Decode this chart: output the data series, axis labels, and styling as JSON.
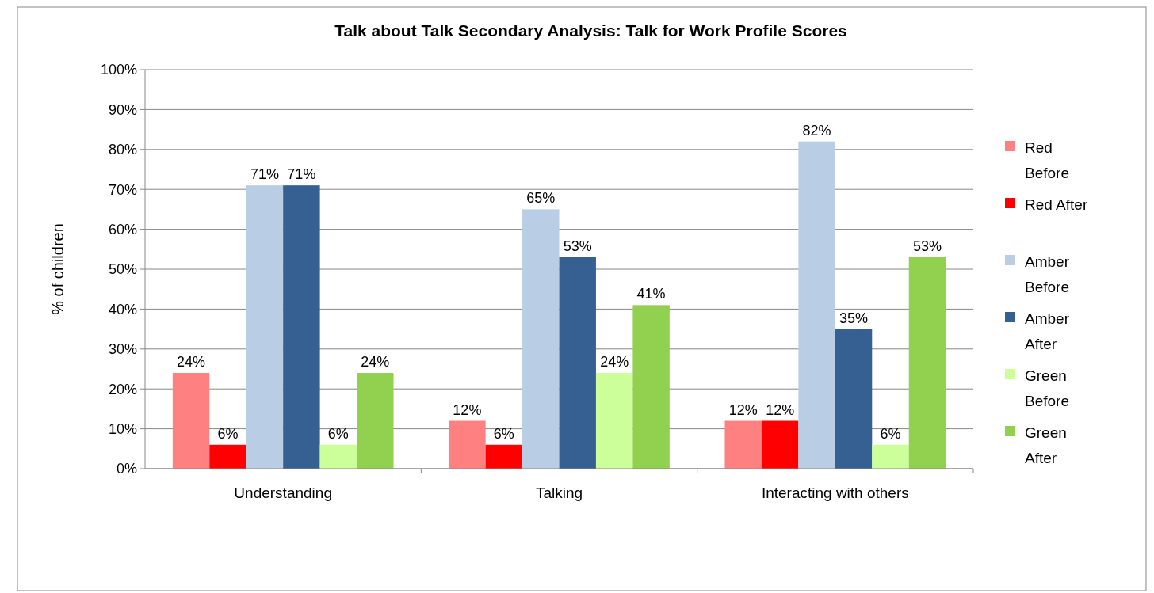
{
  "chart_data": {
    "type": "bar",
    "title": "Talk about Talk Secondary Analysis: Talk for Work Profile Scores",
    "ylabel": "% of children",
    "categories": [
      "Understanding",
      "Talking",
      "Interacting with others"
    ],
    "series": [
      {
        "name": "Red Before",
        "color": "#ff8080",
        "values": [
          24,
          12,
          12
        ],
        "value_labels": [
          "24%",
          "12%",
          "12%"
        ]
      },
      {
        "name": "Red After",
        "color": "#ff0000",
        "values": [
          6,
          6,
          12
        ],
        "value_labels": [
          "6%",
          "6%",
          "12%"
        ]
      },
      {
        "name": "Amber Before",
        "color": "#b9cde5",
        "values": [
          71,
          65,
          82
        ],
        "value_labels": [
          "71%",
          "65%",
          "82%"
        ]
      },
      {
        "name": "Amber After",
        "color": "#366092",
        "values": [
          71,
          53,
          35
        ],
        "value_labels": [
          "71%",
          "53%",
          "35%"
        ]
      },
      {
        "name": "Green Before",
        "color": "#ccff99",
        "values": [
          6,
          24,
          6
        ],
        "value_labels": [
          "6%",
          "24%",
          "6%"
        ]
      },
      {
        "name": "Green After",
        "color": "#92d050",
        "values": [
          24,
          41,
          53
        ],
        "value_labels": [
          "24%",
          "41%",
          "53%"
        ]
      }
    ],
    "ylim": [
      0,
      100
    ],
    "yticks": [
      {
        "value": 0,
        "label": "0%"
      },
      {
        "value": 10,
        "label": "10%"
      },
      {
        "value": 20,
        "label": "20%"
      },
      {
        "value": 30,
        "label": "30%"
      },
      {
        "value": 40,
        "label": "40%"
      },
      {
        "value": 50,
        "label": "50%"
      },
      {
        "value": 60,
        "label": "60%"
      },
      {
        "value": 70,
        "label": "70%"
      },
      {
        "value": 80,
        "label": "80%"
      },
      {
        "value": 90,
        "label": "90%"
      },
      {
        "value": 100,
        "label": "100%"
      }
    ],
    "grid": "y",
    "legend": "right"
  }
}
